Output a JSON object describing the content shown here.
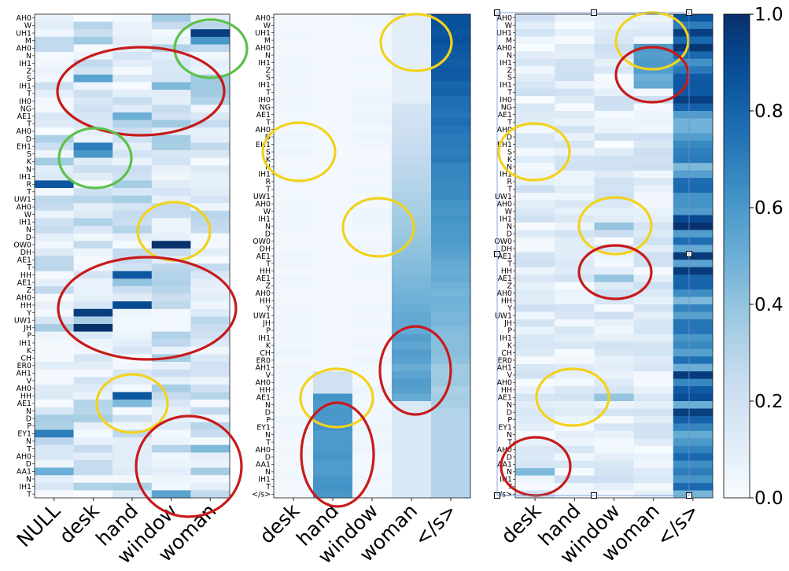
{
  "chart_data": [
    {
      "type": "heatmap",
      "title": "",
      "xlabel": "",
      "ylabel": "",
      "columns": [
        "NULL",
        "desk",
        "hand",
        "window",
        "woman"
      ],
      "rows": [
        "AH0",
        "W",
        "UH1",
        "M",
        "AH0",
        "N",
        "IH1",
        "Z",
        "S",
        "IH1",
        "T",
        "IH0",
        "NG",
        "AE1",
        "T",
        "AH0",
        "D",
        "EH1",
        "S",
        "K",
        "N",
        "IH1",
        "R",
        "T",
        "UW1",
        "AH0",
        "W",
        "IH1",
        "N",
        "D",
        "OW0",
        "DH",
        "AE1",
        "T",
        "HH",
        "AE1",
        "Z",
        "AH0",
        "HH",
        "Y",
        "UW1",
        "JH",
        "P",
        "IH1",
        "K",
        "CH",
        "ER0",
        "AH1",
        "V",
        "AH0",
        "HH",
        "AE1",
        "N",
        "D",
        "P",
        "EY1",
        "N",
        "T",
        "AH0",
        "D",
        "AA1",
        "N",
        "IH1",
        "T"
      ],
      "value_range": [
        0.0,
        1.0
      ],
      "highlights": [
        {
          "color": "green",
          "rows": "UH1–IH1",
          "columns": "woman"
        },
        {
          "color": "red",
          "rows": "AH0–IH0",
          "columns": "desk–window"
        },
        {
          "color": "green",
          "rows": "D–IH1",
          "columns": "desk"
        },
        {
          "color": "yellow",
          "rows": "IH1–OW0",
          "columns": "window"
        },
        {
          "color": "red",
          "rows": "AE1–ER0",
          "columns": "desk–window"
        },
        {
          "color": "yellow",
          "rows": "AH0–N",
          "columns": "hand"
        },
        {
          "color": "red",
          "rows": "N–T",
          "columns": "window–woman"
        }
      ]
    },
    {
      "type": "heatmap",
      "title": "",
      "xlabel": "",
      "ylabel": "",
      "columns": [
        "desk",
        "hand",
        "window",
        "woman",
        "</s>"
      ],
      "rows": [
        "AH0",
        "W",
        "UH1",
        "M",
        "AH0",
        "N",
        "IH1",
        "Z",
        "S",
        "IH1",
        "T",
        "IH0",
        "NG",
        "AE1",
        "T",
        "AH0",
        "D",
        "EH1",
        "S",
        "K",
        "N",
        "IH1",
        "R",
        "T",
        "UW1",
        "AH0",
        "W",
        "IH1",
        "N",
        "D",
        "OW0",
        "DH",
        "AE1",
        "T",
        "HH",
        "AE1",
        "Z",
        "AH0",
        "HH",
        "Y",
        "UW1",
        "JH",
        "P",
        "IH1",
        "K",
        "CH",
        "ER0",
        "AH1",
        "V",
        "AH0",
        "HH",
        "AE1",
        "N",
        "D",
        "P",
        "EY1",
        "N",
        "T",
        "AH0",
        "D",
        "AA1",
        "N",
        "IH1",
        "T",
        "</s>"
      ],
      "value_range": [
        0.0,
        1.0
      ],
      "highlights": [
        {
          "color": "yellow",
          "rows": "AH0–IH1",
          "columns": "woman"
        },
        {
          "color": "yellow",
          "rows": "AH0–IH1",
          "columns": "desk"
        },
        {
          "color": "yellow",
          "rows": "W–D",
          "columns": "window"
        },
        {
          "color": "red",
          "rows": "IH1–AE1",
          "columns": "woman"
        },
        {
          "color": "yellow",
          "rows": "AH0–D",
          "columns": "hand"
        },
        {
          "color": "red",
          "rows": "N–</s>",
          "columns": "hand"
        }
      ]
    },
    {
      "type": "heatmap",
      "title": "",
      "xlabel": "",
      "ylabel": "",
      "columns": [
        "desk",
        "hand",
        "window",
        "woman",
        "</s>"
      ],
      "rows": [
        "AH0",
        "W",
        "UH1",
        "M",
        "AH0",
        "N",
        "IH1",
        "Z",
        "S",
        "IH1",
        "T",
        "IH0",
        "NG",
        "AE1",
        "T",
        "AH0",
        "D",
        "EH1",
        "S",
        "K",
        "N",
        "IH1",
        "R",
        "T",
        "UW1",
        "AH0",
        "W",
        "IH1",
        "N",
        "D",
        "OW0",
        "DH",
        "AE1",
        "T",
        "HH",
        "AE1",
        "Z",
        "AH0",
        "HH",
        "Y",
        "UW1",
        "JH",
        "P",
        "IH1",
        "K",
        "CH",
        "ER0",
        "AH1",
        "V",
        "AH0",
        "HH",
        "AE1",
        "N",
        "D",
        "P",
        "EY1",
        "N",
        "T",
        "AH0",
        "D",
        "AA1",
        "N",
        "IH1",
        "T",
        "</s>"
      ],
      "value_range": [
        0.0,
        1.0
      ],
      "highlights": [
        {
          "color": "yellow",
          "rows": "AH0–N",
          "columns": "woman"
        },
        {
          "color": "red",
          "rows": "N–T",
          "columns": "woman"
        },
        {
          "color": "yellow",
          "rows": "AH0–IH1",
          "columns": "desk"
        },
        {
          "color": "yellow",
          "rows": "IH1–AE1",
          "columns": "window"
        },
        {
          "color": "red",
          "rows": "AE1–AH0",
          "columns": "window"
        },
        {
          "color": "yellow",
          "rows": "V–N",
          "columns": "hand"
        },
        {
          "color": "red",
          "rows": "EY1–</s>",
          "columns": "desk"
        }
      ]
    }
  ],
  "colorbar": {
    "range": [
      0.0,
      1.0
    ],
    "ticks": [
      "0.0",
      "0.2",
      "0.4",
      "0.6",
      "0.8",
      "1.0"
    ],
    "colormap": "Blues"
  },
  "colors": {
    "green": "#5cc14a",
    "red": "#c81a1a",
    "yellow": "#f2d21c",
    "frame": "#1c1c1c"
  }
}
